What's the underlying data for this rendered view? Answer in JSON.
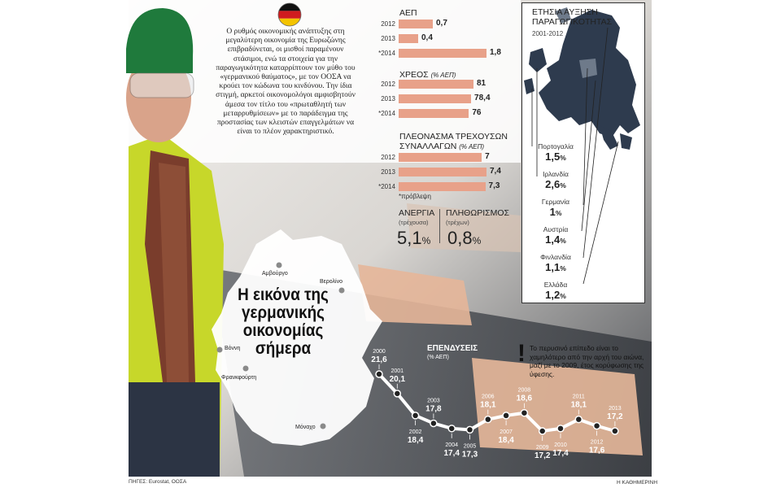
{
  "intro_text": "Ο ρυθμός οικονομικής ανάπτυξης στη μεγαλύτερη οικονομία της Ευρωζώνης επιβραδύνεται, οι μισθοί παραμένουν στάσιμοι, ενώ τα στοιχεία για την παραγωγικότητα καταρρίπτουν τον μύθο του «γερμανικού θαύματος», με τον ΟΟΣΑ να κρούει τον κώδωνα του κινδύνου. Την ίδια στιγμή, αρκετοί οικονομολόγοι αμφισβητούν άμεσα τον τίτλο του «πρωταθλητή των μεταρρυθμίσεων» με το παράδειγμα της προστασίας των κλειστών επαγγελμάτων να είναι το πλέον χαρακτηριστικό.",
  "headline": "Η εικόνα της γερμανικής οικονομίας σήμερα",
  "cities": {
    "augsburg": "Αμβούργο",
    "berlin": "Βερολίνο",
    "bonn": "Βόννη",
    "frankfurt": "Φρανκφούρτη",
    "munich": "Μόναχο"
  },
  "footnote": "*πρόβλεψη",
  "stats": {
    "unemployment": {
      "label": "ΑΝΕΡΓΙΑ",
      "sub": "(τρέχουσα)",
      "value": "5,1",
      "unit": "%"
    },
    "inflation": {
      "label": "ΠΛΗΘΩΡΙΣΜΟΣ",
      "sub": "(τρέχων)",
      "value": "0,8",
      "unit": "%"
    }
  },
  "note": "Το περυσινό επίπεδο είναι το χαμηλότερο από την αρχή του αιώνα, μαζί με το 2009, έτος κορύφωσης της ύφεσης.",
  "note_mark": "!",
  "source": "ΠΗΓΕΣ: Eurostat, ΟΟΣΑ",
  "brand": "Η ΚΑΘΗΜΕΡΙΝΗ",
  "map": {
    "title_line1": "ΕΤΗΣΙΑ ΑΥΞΗΣΗ",
    "title_line2": "ΠΑΡΑΓΩΓΙΚΟΤΗΤΑΣ",
    "subtitle": "2001-2012"
  },
  "colors": {
    "bar": "#e8a189",
    "line": "#ffffff",
    "map_land": "#2e3b4e"
  },
  "chart_data": [
    {
      "type": "bar",
      "title": "ΑΕΠ",
      "unit": "",
      "categories": [
        "2012",
        "2013",
        "*2014"
      ],
      "values": [
        0.7,
        0.4,
        1.8
      ],
      "labels": [
        "0,7",
        "0,4",
        "1,8"
      ]
    },
    {
      "type": "bar",
      "title": "ΧΡΕΟΣ",
      "unit": "(% ΑΕΠ)",
      "categories": [
        "2012",
        "2013",
        "*2014"
      ],
      "values": [
        81,
        78.4,
        76
      ],
      "labels": [
        "81",
        "78,4",
        "76"
      ]
    },
    {
      "type": "bar",
      "title_line1": "ΠΛΕΟΝΑΣΜΑ ΤΡΕΧΟΥΣΩΝ",
      "title_line2": "ΣΥΝΑΛΛΑΓΩΝ",
      "unit": "(% ΑΕΠ)",
      "categories": [
        "2012",
        "2013",
        "*2014"
      ],
      "values": [
        7,
        7.4,
        7.3
      ],
      "labels": [
        "7",
        "7,4",
        "7,3"
      ]
    },
    {
      "type": "line",
      "title": "ΕΠΕΝΔΥΣΕΙΣ",
      "unit": "(% ΑΕΠ)",
      "x": [
        "2000",
        "2001",
        "2002",
        "2003",
        "2004",
        "2005",
        "2006",
        "2007",
        "2008",
        "2009",
        "2010",
        "2011",
        "2012",
        "2013"
      ],
      "y": [
        21.6,
        20.1,
        18.4,
        17.8,
        17.4,
        17.3,
        18.1,
        18.4,
        18.6,
        17.2,
        17.4,
        18.1,
        17.6,
        17.2
      ],
      "labels": [
        "21,6",
        "20,1",
        "18,4",
        "17,8",
        "17,4",
        "17,3",
        "18,1",
        "18,4",
        "18,6",
        "17,2",
        "17,4",
        "18,1",
        "17,6",
        "17,2"
      ]
    },
    {
      "type": "table",
      "title": "ΕΤΗΣΙΑ ΑΥΞΗΣΗ ΠΑΡΑΓΩΓΙΚΟΤΗΤΑΣ",
      "subtitle": "2001-2012",
      "countries": [
        "Πορτογαλία",
        "Ιρλανδία",
        "Γερμανία",
        "Αυστρία",
        "Φινλανδία",
        "Ελλάδα"
      ],
      "values": [
        "1,5",
        "2,6",
        "1",
        "1,4",
        "1,1",
        "1,2"
      ],
      "unit": "%"
    }
  ]
}
